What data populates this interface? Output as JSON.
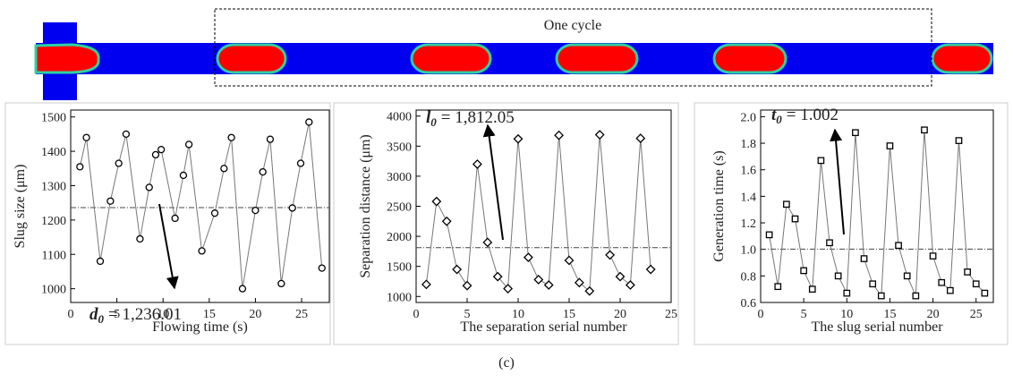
{
  "diagram": {
    "label": "One cycle"
  },
  "caption": "(c)",
  "chart_data": [
    {
      "type": "line",
      "marker": "circle",
      "x_label": "Flowing time (s)",
      "y_label": "Slug size (μm)",
      "x": [
        1,
        1.7,
        3.2,
        4.3,
        5.2,
        6,
        7.5,
        8.5,
        9.2,
        9.8,
        11.3,
        12.2,
        12.8,
        14.2,
        15.6,
        16.6,
        17.4,
        18.6,
        20,
        20.8,
        21.6,
        22.8,
        24,
        24.9,
        25.8,
        27.2
      ],
      "values": [
        1355,
        1440,
        1080,
        1255,
        1365,
        1450,
        1145,
        1295,
        1390,
        1405,
        1205,
        1330,
        1420,
        1110,
        1220,
        1350,
        1440,
        1000,
        1228,
        1340,
        1435,
        1015,
        1235,
        1365,
        1485,
        1060
      ],
      "xlim": [
        0,
        28
      ],
      "xticks": [
        0,
        5,
        10,
        15,
        20,
        25
      ],
      "ylim": [
        960,
        1520
      ],
      "yticks": [
        1000,
        1100,
        1200,
        1300,
        1400,
        1500
      ],
      "annotation": {
        "symbol": "d",
        "subscript": "0",
        "value": 1236.01,
        "label": "= 1,236.01"
      }
    },
    {
      "type": "line",
      "marker": "diamond",
      "x_label": "The separation serial number",
      "y_label": "Separation  distance (μm)",
      "x": [
        1,
        2,
        3,
        4,
        5,
        6,
        7,
        8,
        9,
        10,
        11,
        12,
        13,
        14,
        15,
        16,
        17,
        18,
        19,
        20,
        21,
        22,
        23
      ],
      "values": [
        1200,
        2580,
        2250,
        1450,
        1180,
        3200,
        1900,
        1330,
        1130,
        3620,
        1650,
        1280,
        1190,
        3680,
        1600,
        1230,
        1090,
        3690,
        1690,
        1330,
        1190,
        3630,
        1450
      ],
      "xlim": [
        0,
        25
      ],
      "xticks": [
        0,
        5,
        10,
        15,
        20,
        25
      ],
      "ylim": [
        900,
        4100
      ],
      "yticks": [
        1000,
        1500,
        2000,
        2500,
        3000,
        3500,
        4000
      ],
      "annotation": {
        "symbol": "l",
        "subscript": "0",
        "value": 1812.05,
        "label": "= 1,812.05"
      }
    },
    {
      "type": "line",
      "marker": "square",
      "x_label": "The slug serial number",
      "y_label": "Generation time (s)",
      "x": [
        1,
        2,
        3,
        4,
        5,
        6,
        7,
        8,
        9,
        10,
        11,
        12,
        13,
        14,
        15,
        16,
        17,
        18,
        19,
        20,
        21,
        22,
        23,
        24,
        25,
        26
      ],
      "values": [
        1.11,
        0.72,
        1.34,
        1.23,
        0.84,
        0.7,
        1.67,
        1.05,
        0.8,
        0.67,
        1.88,
        0.93,
        0.74,
        0.65,
        1.78,
        1.03,
        0.8,
        0.65,
        1.9,
        0.95,
        0.75,
        0.69,
        1.82,
        0.83,
        0.74,
        0.67
      ],
      "xlim": [
        0,
        27
      ],
      "xticks": [
        0,
        5,
        10,
        15,
        20,
        25
      ],
      "ylim": [
        0.6,
        2.05
      ],
      "yticks": [
        {
          "value": 0.6,
          "label": "0.6"
        },
        {
          "value": 0.8,
          "label": "0.8"
        },
        {
          "value": 1,
          "label": "1.0"
        },
        {
          "value": 1.2,
          "label": "1.2"
        },
        {
          "value": 1.4,
          "label": "1.4"
        },
        {
          "value": 1.6,
          "label": "1.6"
        },
        {
          "value": 1.8,
          "label": "1.8"
        },
        {
          "value": 2,
          "label": "2.0"
        }
      ],
      "annotation": {
        "symbol": "t",
        "subscript": "0",
        "value": 1.002,
        "label": "= 1.002"
      }
    }
  ]
}
